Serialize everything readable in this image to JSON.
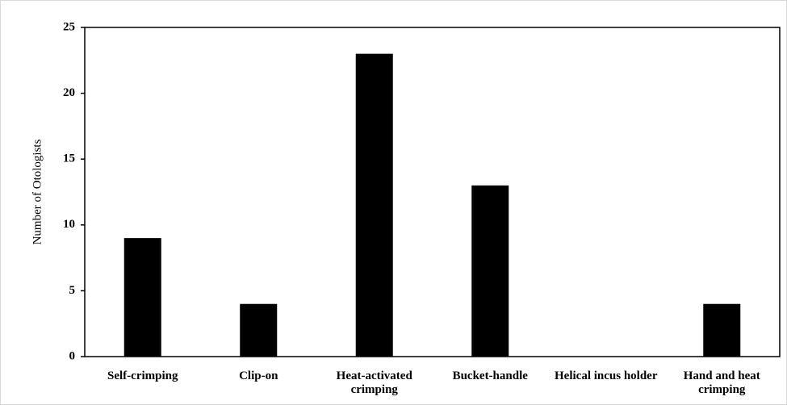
{
  "chart_data": {
    "type": "bar",
    "y_label": "Number of Otologists",
    "categories": [
      "Self-crimping",
      "Clip-on",
      "Heat-activated crimping",
      "Bucket-handle",
      "Helical incus holder",
      "Hand and heat crimping"
    ],
    "values": [
      9,
      4,
      23,
      13,
      0,
      4
    ],
    "color": "#000000",
    "ylim": [
      0,
      25
    ],
    "yticks": [
      0,
      5,
      10,
      15,
      20,
      25
    ],
    "grid": false
  }
}
